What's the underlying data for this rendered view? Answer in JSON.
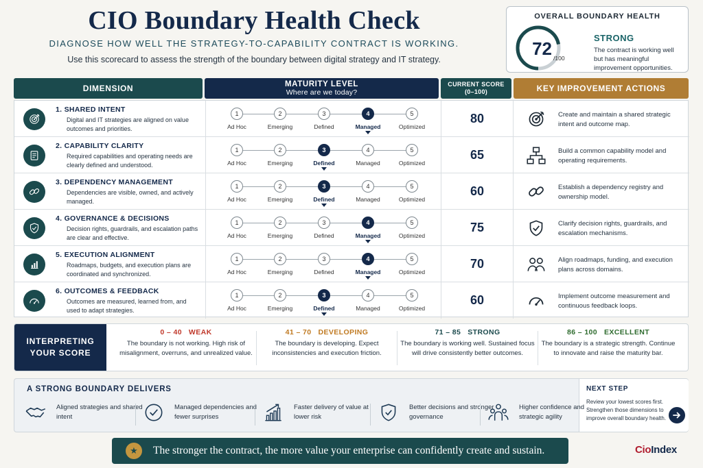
{
  "header": {
    "title": "CIO Boundary Health Check",
    "subtitle": "DIAGNOSE HOW WELL THE STRATEGY-TO-CAPABILITY CONTRACT IS WORKING.",
    "intro": "Use this scorecard to assess the strength of the boundary between digital strategy and IT strategy."
  },
  "overall": {
    "heading": "OVERALL BOUNDARY HEALTH",
    "score": "72",
    "denominator": "/100",
    "score_value": 72,
    "rating": "STRONG",
    "description": "The contract is working well but has meaningful improvement opportunities."
  },
  "columns": {
    "dimension": "DIMENSION",
    "maturity": "MATURITY LEVEL",
    "maturity_sub": "Where are we today?",
    "current_line1": "CURRENT SCORE",
    "current_line2": "(0–100)",
    "actions": "KEY IMPROVEMENT ACTIONS"
  },
  "levels": [
    "Ad Hoc",
    "Emerging",
    "Defined",
    "Managed",
    "Optimized"
  ],
  "dimensions": [
    {
      "name": "1.  SHARED INTENT",
      "desc": "Digital and IT strategies are aligned on value outcomes and priorities.",
      "level": 4,
      "score": "80",
      "action": "Create and maintain a shared strategic intent and outcome map.",
      "icon": "target-icon",
      "action_icon": "target-icon"
    },
    {
      "name": "2.  CAPABILITY CLARITY",
      "desc": "Required capabilities and operating needs are clearly defined and understood.",
      "level": 3,
      "score": "65",
      "action": "Build a common capability model and operating requirements.",
      "icon": "document-icon",
      "action_icon": "hierarchy-icon"
    },
    {
      "name": "3.  DEPENDENCY MANAGEMENT",
      "desc": "Dependencies are visible, owned, and actively managed.",
      "level": 3,
      "score": "60",
      "action": "Establish a dependency registry and ownership model.",
      "icon": "link-icon",
      "action_icon": "link-icon"
    },
    {
      "name": "4.  GOVERNANCE & DECISIONS",
      "desc": "Decision rights, guardrails, and escalation paths are clear and effective.",
      "level": 4,
      "score": "75",
      "action": "Clarify decision rights, guardrails, and escalation mechanisms.",
      "icon": "shield-icon",
      "action_icon": "shield-icon"
    },
    {
      "name": "5.  EXECUTION ALIGNMENT",
      "desc": "Roadmaps, budgets, and execution plans are coordinated and synchronized.",
      "level": 4,
      "score": "70",
      "action": "Align roadmaps, funding, and execution plans across domains.",
      "icon": "bar-chart-icon",
      "action_icon": "people-icon"
    },
    {
      "name": "6.  OUTCOMES & FEEDBACK",
      "desc": "Outcomes are measured, learned from, and used to adapt strategies.",
      "level": 3,
      "score": "60",
      "action": "Implement outcome measurement and continuous feedback loops.",
      "icon": "speedometer-icon",
      "action_icon": "speedometer-icon"
    }
  ],
  "interpret": {
    "label_line1": "INTERPRETING",
    "label_line2": "YOUR SCORE",
    "bands": [
      {
        "range": "0 – 40",
        "name": "WEAK",
        "text": "The boundary is not working. High risk of misalignment, overruns, and unrealized value.",
        "color": "#c0392b"
      },
      {
        "range": "41 – 70",
        "name": "DEVELOPING",
        "text": "The boundary is developing. Expect inconsistencies and execution friction.",
        "color": "#c07a22"
      },
      {
        "range": "71 – 85",
        "name": "STRONG",
        "text": "The boundary is working well. Sustained focus will drive consistently better outcomes.",
        "color": "#1b4a4d"
      },
      {
        "range": "86 – 100",
        "name": "EXCELLENT",
        "text": "The boundary is a strategic strength. Continue to innovate and raise the maturity bar.",
        "color": "#2e6b2e"
      }
    ]
  },
  "deliver": {
    "heading": "A STRONG BOUNDARY DELIVERS",
    "items": [
      {
        "text": "Aligned strategies and shared intent",
        "icon": "handshake-icon"
      },
      {
        "text": "Managed dependencies and fewer surprises",
        "icon": "check-circle-icon"
      },
      {
        "text": "Faster delivery of value at lower risk",
        "icon": "growth-chart-icon"
      },
      {
        "text": "Better decisions and stronger governance",
        "icon": "shield-check-icon"
      },
      {
        "text": "Higher confidence and strategic agility",
        "icon": "team-icon"
      }
    ],
    "next_heading": "NEXT STEP",
    "next_text": "Review your lowest scores first. Strengthen those dimensions to improve overall boundary health."
  },
  "banner": "The stronger the contract, the more value your enterprise can confidently create and sustain.",
  "logo": {
    "part1": "Cio",
    "part2": "Index"
  },
  "colors": {
    "navy": "#14294a",
    "teal": "#1b4a4d",
    "gold": "#b07d34",
    "star": "#c4963f"
  }
}
